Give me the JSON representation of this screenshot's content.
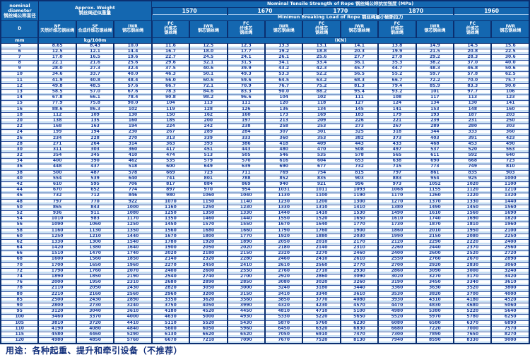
{
  "page": {
    "caption": "用途：各种起重、提升和牵引设备（不推荐）"
  },
  "colors": {
    "header_bg": "#1467b0",
    "border": "#0b2f70",
    "row_stripe": "#c7dff4",
    "value_text": "#1b3f9e"
  },
  "table": {
    "header": {
      "diameter_title": "nominal\ndiameter\n钢丝绳公称直径",
      "diameter_symbol": "D",
      "diameter_unit": "mm",
      "weight_title": "Approx. Weight\n钢丝绳近似重量",
      "weight_unit": "kg/100m",
      "weight_columns": [
        "NF\n天然纤维芯钢丝绳",
        "SF\n合成纤维芯钢丝绳",
        "IWR\n钢芯钢丝绳"
      ],
      "strength_title": "Nominal Tensile Strength of Rope 钢丝绳公称抗拉强度 (MPa)",
      "strength_values": [
        "1570",
        "1670",
        "1770",
        "1870",
        "1960"
      ],
      "breaking_title": "Minimun Breaking Load of Rope 钢丝绳最小破断拉力",
      "breaking_unit": "(KN)",
      "core_columns": [
        "FC\n纤维芯\n钢丝绳",
        "IWR\n钢芯钢丝绳"
      ]
    },
    "rows": [
      [
        "5",
        "8.65",
        "8.43",
        "10.0",
        "11.6",
        "12.5",
        "12.3",
        "13.3",
        "13.1",
        "14.1",
        "13.8",
        "14.9",
        "14.5",
        "15.6"
      ],
      [
        "6",
        "12.5",
        "12.1",
        "14.4",
        "16.7",
        "18.0",
        "17.7",
        "19.2",
        "18.8",
        "20.3",
        "19.9",
        "21.5",
        "20.8",
        "22.5"
      ],
      [
        "7",
        "17.0",
        "16.5",
        "19.6",
        "22.7",
        "24.5",
        "24.1",
        "26.1",
        "25.6",
        "27.7",
        "27.0",
        "29.2",
        "28.3",
        "30.6"
      ],
      [
        "8",
        "22.1",
        "21.6",
        "25.6",
        "29.6",
        "32.1",
        "31.5",
        "34.1",
        "33.4",
        "36.1",
        "35.3",
        "38.2",
        "37.0",
        "40.0"
      ],
      [
        "9",
        "28.0",
        "27.3",
        "32.4",
        "37.5",
        "40.6",
        "39.9",
        "43.2",
        "42.3",
        "45.7",
        "44.7",
        "48.3",
        "46.8",
        "50.6"
      ],
      [
        "10",
        "34.6",
        "33.7",
        "40.0",
        "46.3",
        "50.1",
        "49.3",
        "53.3",
        "52.2",
        "56.5",
        "55.2",
        "59.7",
        "57.8",
        "62.5"
      ],
      [
        "11",
        "41.9",
        "40.8",
        "48.4",
        "56.0",
        "60.6",
        "59.6",
        "64.5",
        "63.2",
        "68.3",
        "66.7",
        "72.2",
        "70.0",
        "75.7"
      ],
      [
        "12",
        "49.8",
        "48.5",
        "57.6",
        "66.7",
        "72.1",
        "70.9",
        "76.7",
        "75.2",
        "81.3",
        "79.4",
        "85.9",
        "83.3",
        "90.0"
      ],
      [
        "13",
        "58.5",
        "57.0",
        "67.6",
        "78.3",
        "84.6",
        "83.3",
        "90.0",
        "88.2",
        "95.4",
        "93.2",
        "101",
        "97.7",
        "106"
      ],
      [
        "14",
        "67.8",
        "66.1",
        "78.4",
        "90.8",
        "98.2",
        "96.6",
        "104",
        "102",
        "111",
        "108",
        "117",
        "113",
        "123"
      ],
      [
        "15",
        "77.9",
        "75.8",
        "90.0",
        "104",
        "113",
        "111",
        "120",
        "118",
        "127",
        "124",
        "134",
        "130",
        "141"
      ],
      [
        "16",
        "88.6",
        "86.3",
        "102",
        "119",
        "128",
        "126",
        "136",
        "134",
        "145",
        "141",
        "153",
        "148",
        "160"
      ],
      [
        "18",
        "112",
        "109",
        "130",
        "150",
        "162",
        "160",
        "173",
        "169",
        "183",
        "179",
        "193",
        "187",
        "203"
      ],
      [
        "20",
        "138",
        "135",
        "160",
        "185",
        "200",
        "197",
        "213",
        "209",
        "226",
        "221",
        "239",
        "231",
        "250"
      ],
      [
        "22",
        "168",
        "163",
        "194",
        "224",
        "242",
        "238",
        "258",
        "253",
        "273",
        "267",
        "289",
        "280",
        "303"
      ],
      [
        "24",
        "199",
        "194",
        "230",
        "267",
        "289",
        "284",
        "307",
        "301",
        "325",
        "318",
        "344",
        "333",
        "360"
      ],
      [
        "26",
        "234",
        "228",
        "270",
        "313",
        "339",
        "333",
        "360",
        "353",
        "382",
        "373",
        "403",
        "391",
        "423"
      ],
      [
        "28",
        "271",
        "264",
        "314",
        "363",
        "393",
        "386",
        "418",
        "409",
        "443",
        "433",
        "468",
        "453",
        "490"
      ],
      [
        "30",
        "311",
        "303",
        "360",
        "417",
        "451",
        "443",
        "480",
        "470",
        "508",
        "497",
        "537",
        "520",
        "563"
      ],
      [
        "32",
        "354",
        "345",
        "410",
        "474",
        "513",
        "505",
        "546",
        "535",
        "578",
        "565",
        "611",
        "592",
        "640"
      ],
      [
        "34",
        "400",
        "390",
        "462",
        "535",
        "579",
        "570",
        "616",
        "604",
        "653",
        "638",
        "690",
        "668",
        "723"
      ],
      [
        "36",
        "448",
        "437",
        "518",
        "600",
        "649",
        "639",
        "690",
        "677",
        "732",
        "715",
        "773",
        "749",
        "810"
      ],
      [
        "38",
        "500",
        "487",
        "578",
        "669",
        "723",
        "711",
        "769",
        "754",
        "815",
        "797",
        "861",
        "835",
        "903"
      ],
      [
        "40",
        "554",
        "539",
        "640",
        "741",
        "801",
        "788",
        "852",
        "835",
        "903",
        "883",
        "954",
        "925",
        "1000"
      ],
      [
        "42",
        "610",
        "595",
        "706",
        "817",
        "884",
        "869",
        "940",
        "921",
        "996",
        "973",
        "1052",
        "1020",
        "1100"
      ],
      [
        "44",
        "670",
        "652",
        "774",
        "897",
        "970",
        "954",
        "1031",
        "1011",
        "1093",
        "1068",
        "1155",
        "1120",
        "1210"
      ],
      [
        "46",
        "732",
        "712",
        "846",
        "980",
        "1060",
        "1040",
        "1130",
        "1100",
        "1190",
        "1170",
        "1260",
        "1220",
        "1320"
      ],
      [
        "48",
        "797",
        "770",
        "922",
        "1070",
        "1150",
        "1140",
        "1230",
        "1200",
        "1300",
        "1270",
        "1370",
        "1330",
        "1440"
      ],
      [
        "50",
        "865",
        "843",
        "1000",
        "1160",
        "1250",
        "1230",
        "1330",
        "1310",
        "1410",
        "1380",
        "1490",
        "1450",
        "1560"
      ],
      [
        "52",
        "936",
        "911",
        "1080",
        "1250",
        "1350",
        "1330",
        "1440",
        "1410",
        "1530",
        "1490",
        "1610",
        "1560",
        "1690"
      ],
      [
        "54",
        "1010",
        "983",
        "1170",
        "1350",
        "1460",
        "1440",
        "1550",
        "1520",
        "1650",
        "1610",
        "1740",
        "1690",
        "1820"
      ],
      [
        "56",
        "1090",
        "1060",
        "1250",
        "1450",
        "1570",
        "1550",
        "1670",
        "1640",
        "1770",
        "1730",
        "1870",
        "1810",
        "1960"
      ],
      [
        "58",
        "1160",
        "1130",
        "1350",
        "1560",
        "1680",
        "1660",
        "1790",
        "1760",
        "1900",
        "1860",
        "2010",
        "1950",
        "2100"
      ],
      [
        "60",
        "1250",
        "1210",
        "1440",
        "1670",
        "1800",
        "1770",
        "1920",
        "1880",
        "2030",
        "1990",
        "2150",
        "2080",
        "2250"
      ],
      [
        "62",
        "1330",
        "1300",
        "1540",
        "1780",
        "1920",
        "1890",
        "2050",
        "2010",
        "2170",
        "2120",
        "2290",
        "2220",
        "2400"
      ],
      [
        "64",
        "1420",
        "1380",
        "1640",
        "1900",
        "2050",
        "2020",
        "2180",
        "2140",
        "2310",
        "2260",
        "2440",
        "2370",
        "2560"
      ],
      [
        "66",
        "1510",
        "1470",
        "1740",
        "2020",
        "2180",
        "2150",
        "2320",
        "2270",
        "2460",
        "2400",
        "2600",
        "2520",
        "2720"
      ],
      [
        "68",
        "1600",
        "1560",
        "1850",
        "2140",
        "2320",
        "2280",
        "2460",
        "2410",
        "2610",
        "2550",
        "2760",
        "2670",
        "2890"
      ],
      [
        "70",
        "1700",
        "1650",
        "1960",
        "2270",
        "2450",
        "2410",
        "2610",
        "2560",
        "2770",
        "2700",
        "2920",
        "2830",
        "3060"
      ],
      [
        "72",
        "1790",
        "1760",
        "2070",
        "2400",
        "2600",
        "2550",
        "2760",
        "2710",
        "2930",
        "2860",
        "3090",
        "3000",
        "3240"
      ],
      [
        "74",
        "1890",
        "1850",
        "2190",
        "2540",
        "2740",
        "2700",
        "2920",
        "2860",
        "3090",
        "3020",
        "3270",
        "3170",
        "3420"
      ],
      [
        "76",
        "2000",
        "1950",
        "2310",
        "2680",
        "2890",
        "2850",
        "3080",
        "3020",
        "3260",
        "3190",
        "3450",
        "3340",
        "3610"
      ],
      [
        "78",
        "2110",
        "2050",
        "2430",
        "2820",
        "3050",
        "3000",
        "3240",
        "3180",
        "3440",
        "3360",
        "3630",
        "3520",
        "3800"
      ],
      [
        "80",
        "2210",
        "2160",
        "2560",
        "2960",
        "3200",
        "3150",
        "3410",
        "3340",
        "3610",
        "3530",
        "3820",
        "3700",
        "4000"
      ],
      [
        "85",
        "2500",
        "2430",
        "2890",
        "3350",
        "3620",
        "3560",
        "3850",
        "3770",
        "4080",
        "3930",
        "4310",
        "4180",
        "4520"
      ],
      [
        "90",
        "2800",
        "2730",
        "3240",
        "3750",
        "4050",
        "3990",
        "4320",
        "4230",
        "4570",
        "4470",
        "4830",
        "4680",
        "5060"
      ],
      [
        "95",
        "3120",
        "3040",
        "3610",
        "4180",
        "4520",
        "4450",
        "4810",
        "4710",
        "5100",
        "4980",
        "5380",
        "5220",
        "5640"
      ],
      [
        "100",
        "3460",
        "3370",
        "4000",
        "4630",
        "5000",
        "4930",
        "5330",
        "5220",
        "5650",
        "5520",
        "5970",
        "5780",
        "6250"
      ],
      [
        "105",
        "3810",
        "3720",
        "4410",
        "5110",
        "5520",
        "5430",
        "5870",
        "5760",
        "6230",
        "6080",
        "6580",
        "6370",
        "6890"
      ],
      [
        "110",
        "4190",
        "4080",
        "4840",
        "5600",
        "6050",
        "5960",
        "6450",
        "6320",
        "6830",
        "6680",
        "7220",
        "7000",
        "7570"
      ],
      [
        "115",
        "4580",
        "4460",
        "5290",
        "6130",
        "6620",
        "6520",
        "7050",
        "6910",
        "7470",
        "7300",
        "7890",
        "7650",
        "8270"
      ],
      [
        "120",
        "4980",
        "4850",
        "5760",
        "6670",
        "7210",
        "7090",
        "7670",
        "7520",
        "8130",
        "7940",
        "8590",
        "8330",
        "9000"
      ]
    ]
  }
}
